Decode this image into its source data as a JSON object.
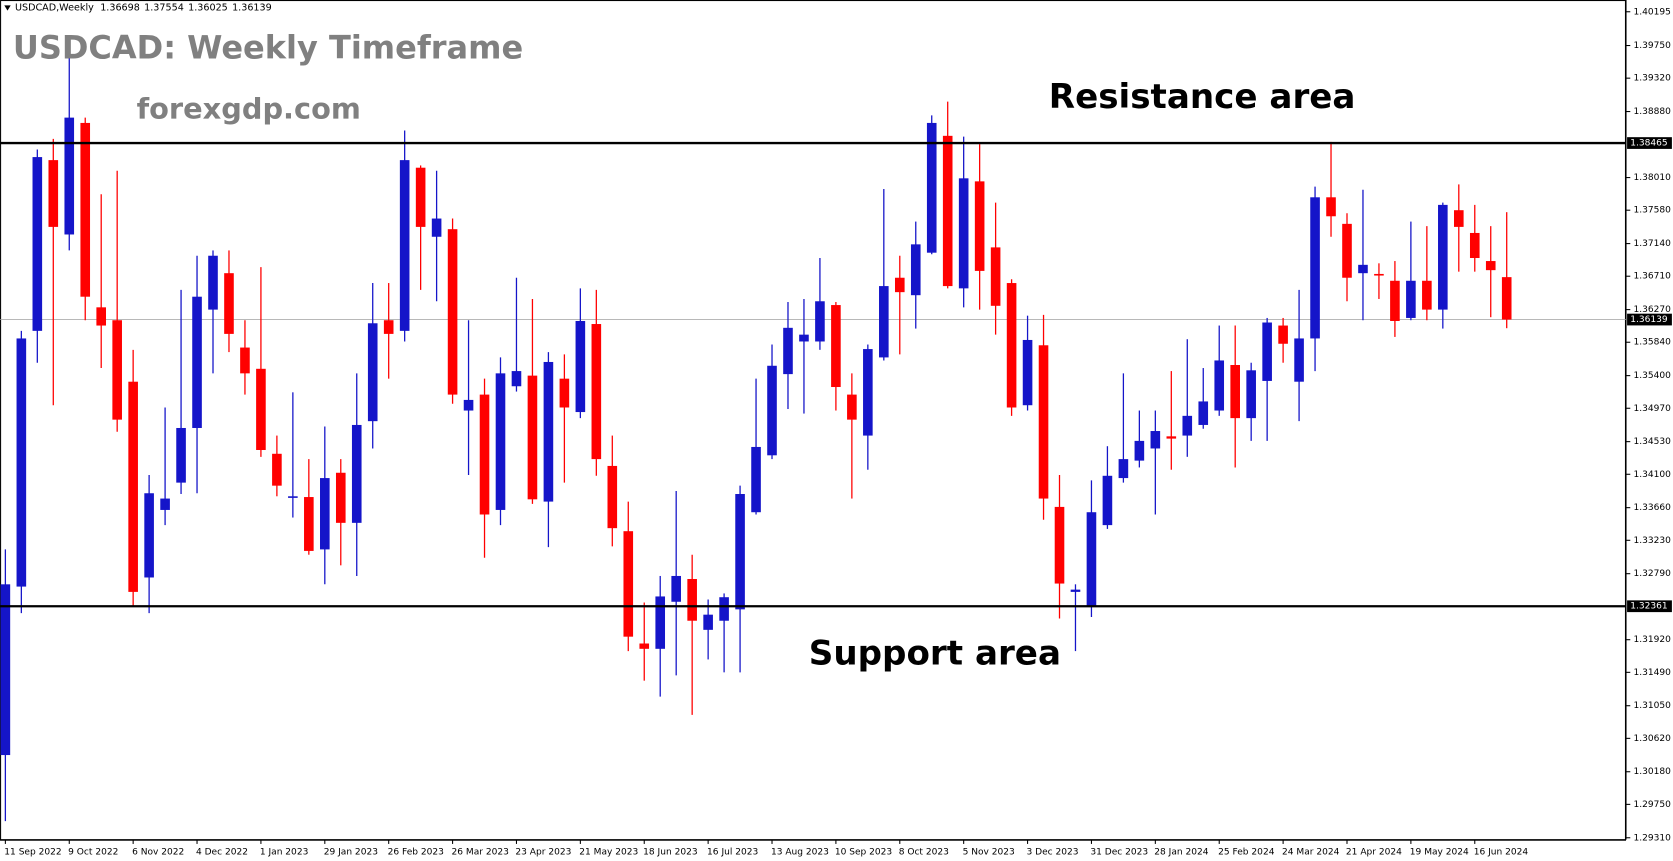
{
  "chart_data": {
    "type": "candlestick",
    "symbol": "USDCAD,Weekly",
    "title": "USDCAD: Weekly Timeframe",
    "subtitle": "forexgdp.com",
    "annotations": [
      "Resistance area",
      "Support area"
    ],
    "categories": [
      "11 Sep 2022",
      null,
      null,
      null,
      "9 Oct 2022",
      null,
      null,
      null,
      "6 Nov 2022",
      null,
      null,
      null,
      "4 Dec 2022",
      null,
      null,
      null,
      "1 Jan 2023",
      null,
      null,
      null,
      "29 Jan 2023",
      null,
      null,
      null,
      "26 Feb 2023",
      null,
      null,
      null,
      "26 Mar 2023",
      null,
      null,
      null,
      "23 Apr 2023",
      null,
      null,
      null,
      "21 May 2023",
      null,
      null,
      null,
      "18 Jun 2023",
      null,
      null,
      null,
      "16 Jul 2023",
      null,
      null,
      null,
      "13 Aug 2023",
      null,
      null,
      null,
      "10 Sep 2023",
      null,
      null,
      null,
      "8 Oct 2023",
      null,
      null,
      null,
      "5 Nov 2023",
      null,
      null,
      null,
      "3 Dec 2023",
      null,
      null,
      null,
      "31 Dec 2023",
      null,
      null,
      null,
      "28 Jan 2024",
      null,
      null,
      null,
      "25 Feb 2024",
      null,
      null,
      null,
      "24 Mar 2024",
      null,
      null,
      null,
      "21 Apr 2024",
      null,
      null,
      null,
      "19 May 2024",
      null,
      null,
      null,
      "16 Jun 2024",
      null,
      null
    ],
    "open": [
      1.304,
      1.3262,
      1.3599,
      1.3824,
      1.3726,
      1.3873,
      1.363,
      1.3613,
      1.3532,
      1.3274,
      1.3363,
      1.3399,
      1.3471,
      1.3627,
      1.3675,
      1.3577,
      1.3549,
      1.3437,
      1.338,
      1.338,
      1.3311,
      1.3412,
      1.3346,
      1.348,
      1.3613,
      1.3599,
      1.3814,
      1.3723,
      1.3733,
      1.3494,
      1.3515,
      1.3363,
      1.3526,
      1.354,
      1.3374,
      1.3536,
      1.3492,
      1.3608,
      1.3421,
      1.3335,
      1.3187,
      1.318,
      1.3242,
      1.3272,
      1.3205,
      1.3217,
      1.3232,
      1.336,
      1.3435,
      1.3542,
      1.3585,
      1.3585,
      1.3633,
      1.3515,
      1.3461,
      1.3564,
      1.3669,
      1.3646,
      1.3702,
      1.3856,
      1.3655,
      1.3796,
      1.3709,
      1.3662,
      1.3501,
      1.358,
      1.3367,
      1.3255,
      1.3236,
      1.3343,
      1.3405,
      1.3428,
      1.3444,
      1.346,
      1.3461,
      1.3475,
      1.3494,
      1.3554,
      1.3484,
      1.3533,
      1.3606,
      1.3532,
      1.3589,
      1.3775,
      1.374,
      1.3675,
      1.3674,
      1.3665,
      1.3616,
      1.3665,
      1.3627,
      1.3758,
      1.3728,
      1.3691,
      1.36698
    ],
    "high": [
      1.3311,
      1.3599,
      1.3838,
      1.3852,
      1.3958,
      1.388,
      1.3779,
      1.381,
      1.3574,
      1.3409,
      1.3498,
      1.3653,
      1.3698,
      1.3705,
      1.3705,
      1.3613,
      1.3683,
      1.3461,
      1.3518,
      1.343,
      1.3473,
      1.343,
      1.3543,
      1.3662,
      1.3662,
      1.3863,
      1.3817,
      1.381,
      1.3747,
      1.3613,
      1.3536,
      1.3564,
      1.3669,
      1.3641,
      1.3571,
      1.3568,
      1.3655,
      1.3653,
      1.3461,
      1.3374,
      1.3241,
      1.3276,
      1.3388,
      1.3304,
      1.3245,
      1.3253,
      1.3395,
      1.3536,
      1.3581,
      1.3637,
      1.3641,
      1.3695,
      1.3637,
      1.3543,
      1.3581,
      1.3786,
      1.3698,
      1.3743,
      1.3883,
      1.3901,
      1.3855,
      1.3845,
      1.3768,
      1.3667,
      1.3619,
      1.362,
      1.3409,
      1.3265,
      1.3402,
      1.3447,
      1.3543,
      1.3494,
      1.3494,
      1.3546,
      1.3588,
      1.355,
      1.3606,
      1.3606,
      1.3557,
      1.3616,
      1.3616,
      1.3653,
      1.3789,
      1.3848,
      1.3754,
      1.3785,
      1.3688,
      1.3691,
      1.3743,
      1.3737,
      1.3768,
      1.3792,
      1.3765,
      1.3737,
      1.37554
    ],
    "low": [
      1.2953,
      1.3227,
      1.3557,
      1.3501,
      1.3705,
      1.3613,
      1.355,
      1.3466,
      1.3236,
      1.3227,
      1.3343,
      1.3384,
      1.3385,
      1.3543,
      1.3571,
      1.3515,
      1.3433,
      1.3381,
      1.3353,
      1.3304,
      1.3265,
      1.329,
      1.3276,
      1.3444,
      1.3536,
      1.3585,
      1.3653,
      1.3638,
      1.3503,
      1.3409,
      1.33,
      1.3343,
      1.3519,
      1.3371,
      1.3314,
      1.3399,
      1.3484,
      1.3408,
      1.3315,
      1.3177,
      1.3138,
      1.3117,
      1.3145,
      1.3093,
      1.3166,
      1.3149,
      1.3149,
      1.3357,
      1.343,
      1.3496,
      1.349,
      1.3574,
      1.3494,
      1.3378,
      1.3416,
      1.356,
      1.3568,
      1.3602,
      1.37,
      1.3655,
      1.363,
      1.3627,
      1.3594,
      1.3487,
      1.3494,
      1.335,
      1.322,
      1.3177,
      1.3222,
      1.3338,
      1.3399,
      1.3419,
      1.3357,
      1.3416,
      1.3433,
      1.347,
      1.3487,
      1.3419,
      1.3454,
      1.3454,
      1.3557,
      1.348,
      1.3546,
      1.3723,
      1.3638,
      1.3613,
      1.3641,
      1.3591,
      1.3613,
      1.3613,
      1.3602,
      1.3677,
      1.3677,
      1.3617,
      1.36025
    ],
    "close": [
      1.3265,
      1.3589,
      1.3828,
      1.3736,
      1.388,
      1.3644,
      1.3606,
      1.3482,
      1.3255,
      1.3385,
      1.3378,
      1.3471,
      1.3644,
      1.3698,
      1.3595,
      1.3543,
      1.3442,
      1.3395,
      1.3381,
      1.3309,
      1.3405,
      1.3346,
      1.3475,
      1.3609,
      1.3595,
      1.3824,
      1.3736,
      1.3747,
      1.3515,
      1.3508,
      1.3357,
      1.3543,
      1.3546,
      1.3377,
      1.3558,
      1.3498,
      1.3612,
      1.343,
      1.3339,
      1.3196,
      1.318,
      1.3249,
      1.3276,
      1.3217,
      1.3225,
      1.3248,
      1.3384,
      1.3446,
      1.3553,
      1.3603,
      1.3594,
      1.3638,
      1.3525,
      1.3482,
      1.3575,
      1.3658,
      1.365,
      1.3713,
      1.3873,
      1.3658,
      1.38,
      1.3678,
      1.3632,
      1.3498,
      1.3587,
      1.3378,
      1.3266,
      1.3258,
      1.336,
      1.3408,
      1.343,
      1.3454,
      1.3467,
      1.3457,
      1.3487,
      1.3506,
      1.356,
      1.3484,
      1.3547,
      1.361,
      1.3582,
      1.3589,
      1.3775,
      1.375,
      1.3669,
      1.3686,
      1.3672,
      1.3612,
      1.3665,
      1.3627,
      1.3765,
      1.3736,
      1.3695,
      1.3679,
      1.36139
    ],
    "up_color": "#1515c9",
    "down_color": "#ff0000",
    "levels": [
      1.38465,
      1.32361
    ],
    "level_color": "#000000",
    "ylim": [
      1.29285,
      1.4035
    ],
    "yticks": [
      1.40195,
      {
        "value": 1.3975,
        "label": "1.39750"
      },
      {
        "value": 1.3932,
        "label": "1.39320"
      },
      {
        "value": 1.3888,
        "label": "1.38880"
      },
      {
        "value": 1.3801,
        "label": "1.38010"
      },
      {
        "value": 1.3758,
        "label": "1.37580"
      },
      {
        "value": 1.3714,
        "label": "1.37140"
      },
      {
        "value": 1.3671,
        "label": "1.36710"
      },
      {
        "value": 1.3627,
        "label": "1.36270"
      },
      {
        "value": 1.3584,
        "label": "1.35840"
      },
      {
        "value": 1.354,
        "label": "1.35400"
      },
      {
        "value": 1.3497,
        "label": "1.34970"
      },
      {
        "value": 1.3453,
        "label": "1.34530"
      },
      {
        "value": 1.341,
        "label": "1.34100"
      },
      {
        "value": 1.3366,
        "label": "1.33660"
      },
      {
        "value": 1.3323,
        "label": "1.33230"
      },
      {
        "value": 1.3279,
        "label": "1.32790"
      },
      {
        "value": 1.3192,
        "label": "1.31920"
      },
      {
        "value": 1.3149,
        "label": "1.31490"
      },
      {
        "value": 1.3105,
        "label": "1.31050"
      },
      {
        "value": 1.3062,
        "label": "1.30620"
      },
      {
        "value": 1.3018,
        "label": "1.30180"
      },
      {
        "value": 1.2975,
        "label": "1.29750"
      },
      {
        "value": 1.2931,
        "label": "1.29310"
      }
    ]
  }
}
